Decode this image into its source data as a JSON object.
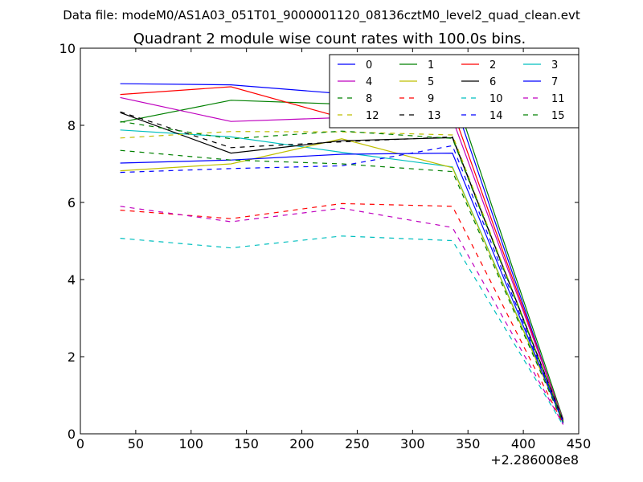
{
  "chart_data": {
    "type": "line",
    "suptitle": "Data file: modeM0/AS1A03_051T01_9000001120_08136cztM0_level2_quad_clean.evt",
    "title": "Quadrant 2 module wise count rates with 100.0s bins.",
    "xlabel": "",
    "ylabel": "",
    "x_offset_label": "+2.286008e8",
    "xlim": [
      0,
      450
    ],
    "ylim": [
      0,
      10
    ],
    "xticks": [
      0,
      50,
      100,
      150,
      200,
      250,
      300,
      350,
      400,
      450
    ],
    "yticks": [
      0,
      2,
      4,
      6,
      8,
      10
    ],
    "x": [
      36,
      136,
      236,
      336,
      436
    ],
    "legend_location": "upper right",
    "legend_columns": 4,
    "series": [
      {
        "name": "0",
        "color": "#0000ff",
        "dashed": false,
        "values": [
          9.08,
          9.05,
          8.82,
          8.75,
          0.3
        ]
      },
      {
        "name": "1",
        "color": "#008000",
        "dashed": false,
        "values": [
          8.08,
          8.65,
          8.55,
          8.97,
          0.38
        ]
      },
      {
        "name": "2",
        "color": "#ff0000",
        "dashed": false,
        "values": [
          8.8,
          9.0,
          8.2,
          8.4,
          0.35
        ]
      },
      {
        "name": "3",
        "color": "#00bfbf",
        "dashed": false,
        "values": [
          7.88,
          7.7,
          7.3,
          6.92,
          0.32
        ]
      },
      {
        "name": "4",
        "color": "#bf00bf",
        "dashed": false,
        "values": [
          8.72,
          8.1,
          8.2,
          8.17,
          0.36
        ]
      },
      {
        "name": "5",
        "color": "#bfbf00",
        "dashed": false,
        "values": [
          6.82,
          7.0,
          7.65,
          6.9,
          0.3
        ]
      },
      {
        "name": "6",
        "color": "#000000",
        "dashed": false,
        "values": [
          8.33,
          7.28,
          7.6,
          7.68,
          0.34
        ]
      },
      {
        "name": "7",
        "color": "#0000ff",
        "dashed": false,
        "values": [
          7.02,
          7.1,
          7.25,
          7.28,
          0.28
        ]
      },
      {
        "name": "8",
        "color": "#008000",
        "dashed": true,
        "values": [
          7.35,
          7.1,
          7.0,
          6.8,
          0.27
        ]
      },
      {
        "name": "9",
        "color": "#ff0000",
        "dashed": true,
        "values": [
          5.8,
          5.58,
          5.97,
          5.9,
          0.25
        ]
      },
      {
        "name": "10",
        "color": "#00bfbf",
        "dashed": true,
        "values": [
          5.07,
          4.82,
          5.13,
          5.01,
          0.22
        ]
      },
      {
        "name": "11",
        "color": "#bf00bf",
        "dashed": true,
        "values": [
          5.9,
          5.5,
          5.85,
          5.35,
          0.24
        ]
      },
      {
        "name": "12",
        "color": "#bfbf00",
        "dashed": true,
        "values": [
          7.67,
          7.84,
          7.83,
          7.75,
          0.33
        ]
      },
      {
        "name": "13",
        "color": "#000000",
        "dashed": true,
        "values": [
          8.35,
          7.42,
          7.57,
          7.7,
          0.32
        ]
      },
      {
        "name": "14",
        "color": "#0000ff",
        "dashed": true,
        "values": [
          6.78,
          6.88,
          6.95,
          7.47,
          0.3
        ]
      },
      {
        "name": "15",
        "color": "#008000",
        "dashed": true,
        "values": [
          8.1,
          7.65,
          7.85,
          7.66,
          0.31
        ]
      }
    ]
  }
}
